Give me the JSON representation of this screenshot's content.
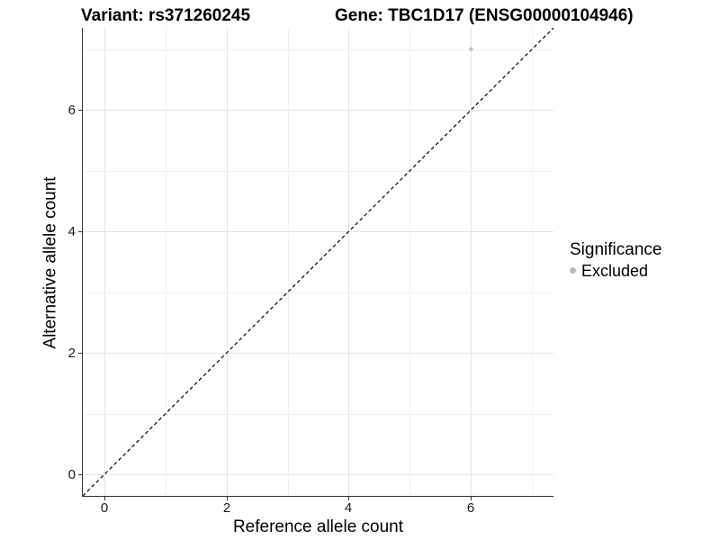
{
  "titles": {
    "variant": "Variant: rs371260245",
    "gene": "Gene: TBC1D17 (ENSG00000104946)"
  },
  "chart_data": {
    "type": "scatter",
    "xlabel": "Reference allele count",
    "ylabel": "Alternative allele count",
    "xlim": [
      -0.35,
      7.35
    ],
    "ylim": [
      -0.35,
      7.35
    ],
    "x_ticks": [
      0,
      2,
      4,
      6
    ],
    "y_ticks": [
      0,
      2,
      4,
      6
    ],
    "gridlines": {
      "x": [
        0,
        1,
        2,
        3,
        4,
        5,
        6,
        7
      ],
      "y": [
        0,
        1,
        2,
        3,
        4,
        5,
        6,
        7
      ]
    },
    "grid": true,
    "series": [
      {
        "name": "Excluded",
        "color": "#bebebe",
        "point_radius": 2.2,
        "points": [
          {
            "x": 6,
            "y": 7
          }
        ]
      }
    ],
    "reference_line": {
      "slope": 1,
      "intercept": 0,
      "style": "dashed",
      "dash": "4 3",
      "color": "#000000",
      "width": 1.2
    },
    "legend": {
      "title": "Significance",
      "position": "right",
      "entries": [
        {
          "label": "Excluded",
          "color": "#b7b7b7"
        }
      ]
    }
  },
  "colors": {
    "axis_line": "#333333",
    "grid_major": "#e4e4e4",
    "grid_minor": "#f1f1f1",
    "background": "#ffffff",
    "text": "#000000"
  }
}
